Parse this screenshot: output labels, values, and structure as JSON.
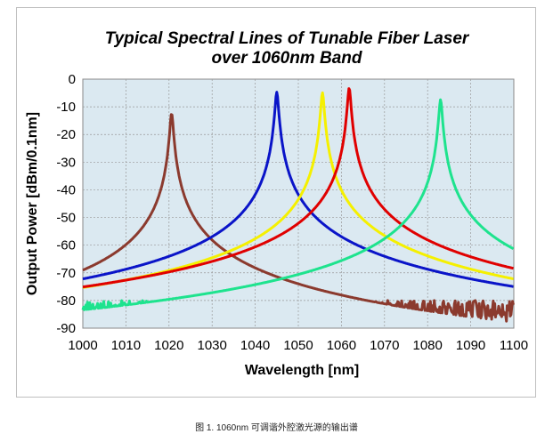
{
  "chart_data": {
    "type": "line",
    "title": [
      "Typical Spectral Lines of Tunable  Fiber Laser",
      "over 1060nm Band"
    ],
    "xlabel": "Wavelength [nm]",
    "ylabel": "Output Power [dBm/0.1nm]",
    "xlim": [
      1000,
      1100
    ],
    "ylim": [
      -90,
      0
    ],
    "xticks": [
      1000,
      1010,
      1020,
      1030,
      1040,
      1050,
      1060,
      1070,
      1080,
      1090,
      1100
    ],
    "yticks": [
      0,
      -10,
      -20,
      -30,
      -40,
      -50,
      -60,
      -70,
      -80,
      -90
    ],
    "grid": true,
    "plot_background": "#dbe9f1",
    "noise_floor_dBm": [
      -90,
      -77
    ],
    "series": [
      {
        "color": "#8b3a2e",
        "peak_wavelength_nm": 1020.6,
        "peak_power_dBm": -12.4
      },
      {
        "color": "#0a14c8",
        "peak_wavelength_nm": 1045.0,
        "peak_power_dBm": -4.7
      },
      {
        "color": "#f5f000",
        "peak_wavelength_nm": 1055.6,
        "peak_power_dBm": -4.9
      },
      {
        "color": "#e00000",
        "peak_wavelength_nm": 1061.8,
        "peak_power_dBm": -3.2
      },
      {
        "color": "#1ee38e",
        "peak_wavelength_nm": 1083.0,
        "peak_power_dBm": -7.4
      }
    ]
  },
  "caption": "图 1. 1060nm 可调谐外腔激光源的输出谱"
}
